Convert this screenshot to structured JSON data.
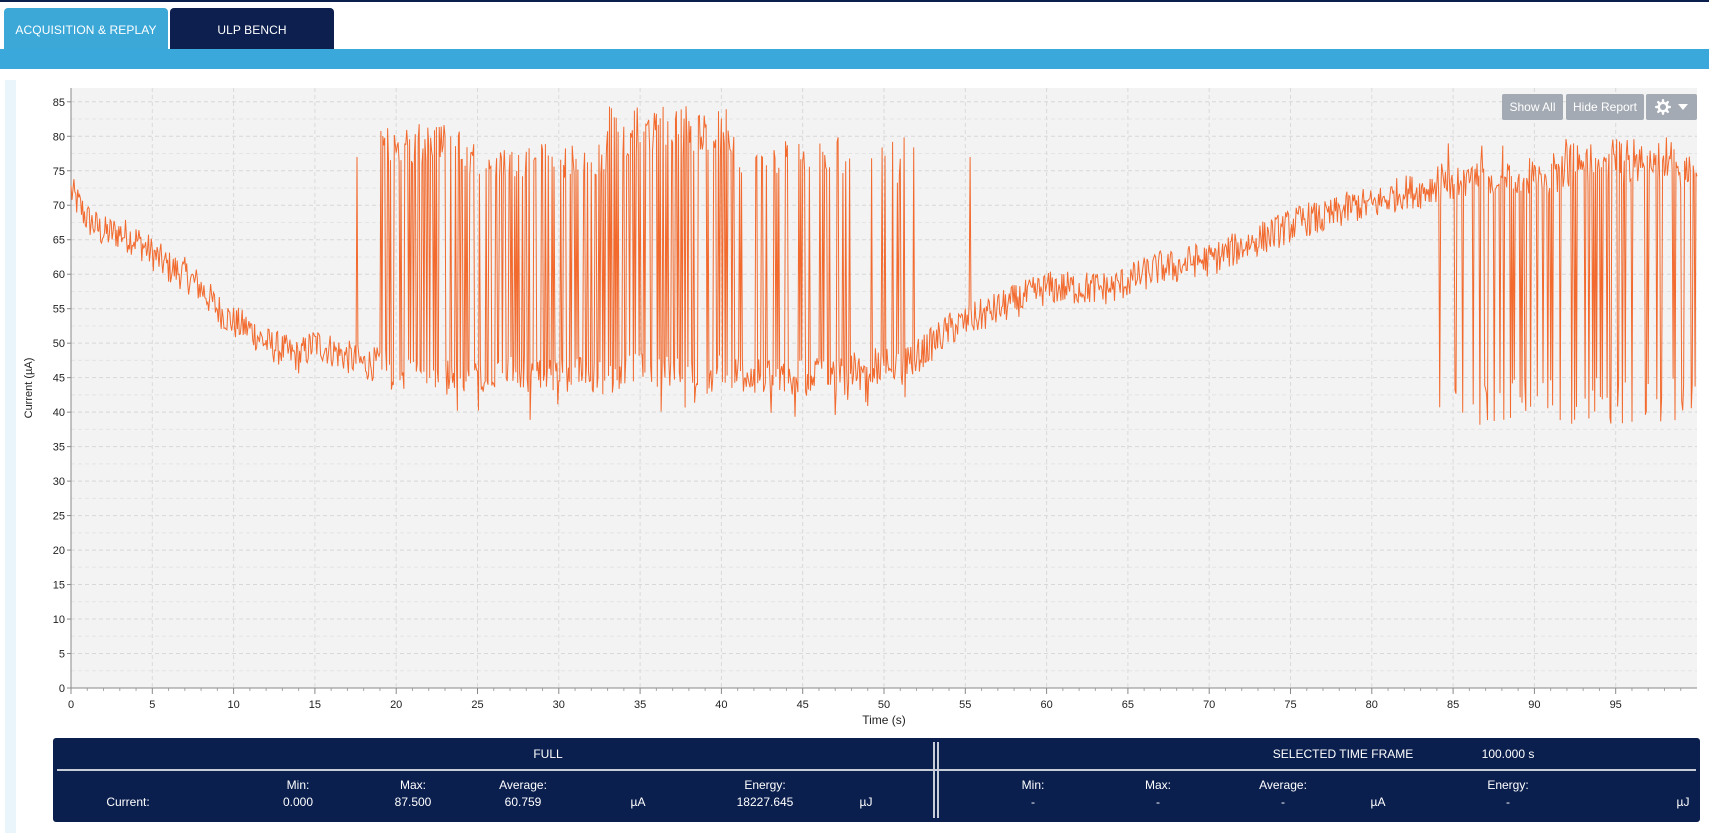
{
  "tabs": [
    {
      "label": "ACQUISITION & REPLAY",
      "active": true
    },
    {
      "label": "ULP BENCH",
      "active": false
    }
  ],
  "chart_toolbar": {
    "show_all_label": "Show All",
    "hide_report_label": "Hide Report",
    "settings_icon": "gear-icon",
    "dropdown_icon": "caret-down-icon"
  },
  "colors": {
    "tab_active": "#3ca8d8",
    "tab_inactive": "#0d1f4f",
    "series": "#f26a2e",
    "report_bg": "#0b1f4e"
  },
  "chart_data": {
    "type": "line",
    "title": "",
    "xlabel": "Time (s)",
    "ylabel": "Current (µA)",
    "xlim": [
      0,
      100
    ],
    "ylim": [
      0,
      87
    ],
    "x_ticks": [
      0,
      5,
      10,
      15,
      20,
      25,
      30,
      35,
      40,
      45,
      50,
      55,
      60,
      65,
      70,
      75,
      80,
      85,
      90,
      95
    ],
    "y_ticks": [
      0,
      5,
      10,
      15,
      20,
      25,
      30,
      35,
      40,
      45,
      50,
      55,
      60,
      65,
      70,
      75,
      80,
      85
    ],
    "grid": true,
    "series": [
      {
        "x": [
          0,
          1,
          2,
          3,
          4,
          5,
          6,
          7,
          8,
          9,
          10,
          11,
          12,
          13,
          14,
          15,
          16,
          17,
          18,
          19,
          20,
          21,
          22,
          23,
          24,
          25,
          26,
          27,
          28,
          29,
          30,
          31,
          32,
          33,
          34,
          35,
          36,
          37,
          38,
          39,
          40,
          41,
          42,
          43,
          44,
          45,
          46,
          47,
          48,
          49,
          50,
          51,
          52,
          53,
          54,
          55,
          56,
          57,
          58,
          59,
          60,
          61,
          62,
          63,
          64,
          65,
          66,
          67,
          68,
          69,
          70,
          71,
          72,
          73,
          74,
          75,
          76,
          77,
          78,
          79,
          80,
          81,
          82,
          83,
          84,
          85,
          86,
          87,
          88,
          89,
          90,
          91,
          92,
          93,
          94,
          95,
          96,
          97,
          98,
          99,
          100
        ],
        "y": [
          72,
          68,
          66,
          66,
          65,
          63,
          61,
          60,
          58,
          55,
          53,
          52,
          50,
          49,
          48,
          50,
          49,
          48,
          47,
          47,
          46,
          46,
          46,
          45,
          45,
          45,
          46,
          46,
          46,
          45,
          46,
          46,
          45,
          45,
          46,
          46,
          46,
          46,
          45,
          45,
          46,
          46,
          46,
          45,
          45,
          45,
          46,
          46,
          46,
          47,
          47,
          47,
          48,
          50,
          52,
          53,
          54,
          55,
          56,
          57,
          58,
          58,
          58,
          58,
          58,
          59,
          60,
          61,
          61,
          62,
          62,
          63,
          64,
          65,
          66,
          67,
          68,
          68,
          69,
          70,
          70,
          71,
          72,
          72,
          73,
          73,
          74,
          74,
          74,
          74,
          74,
          74,
          75,
          75,
          75,
          75,
          75,
          75,
          75,
          75,
          76
        ]
      }
    ]
  },
  "report": {
    "full": {
      "header": "FULL",
      "row_label": "Current:",
      "min_label": "Min:",
      "min": "0.000",
      "max_label": "Max:",
      "max": "87.500",
      "avg_label": "Average:",
      "avg": "60.759",
      "current_unit": "µA",
      "energy_label": "Energy:",
      "energy": "18227.645",
      "energy_unit": "µJ"
    },
    "selected": {
      "header": "SELECTED TIME FRAME",
      "duration": "100.000 s",
      "min_label": "Min:",
      "min": "-",
      "max_label": "Max:",
      "max": "-",
      "avg_label": "Average:",
      "avg": "-",
      "current_unit": "µA",
      "energy_label": "Energy:",
      "energy": "-",
      "energy_unit": "µJ"
    }
  }
}
